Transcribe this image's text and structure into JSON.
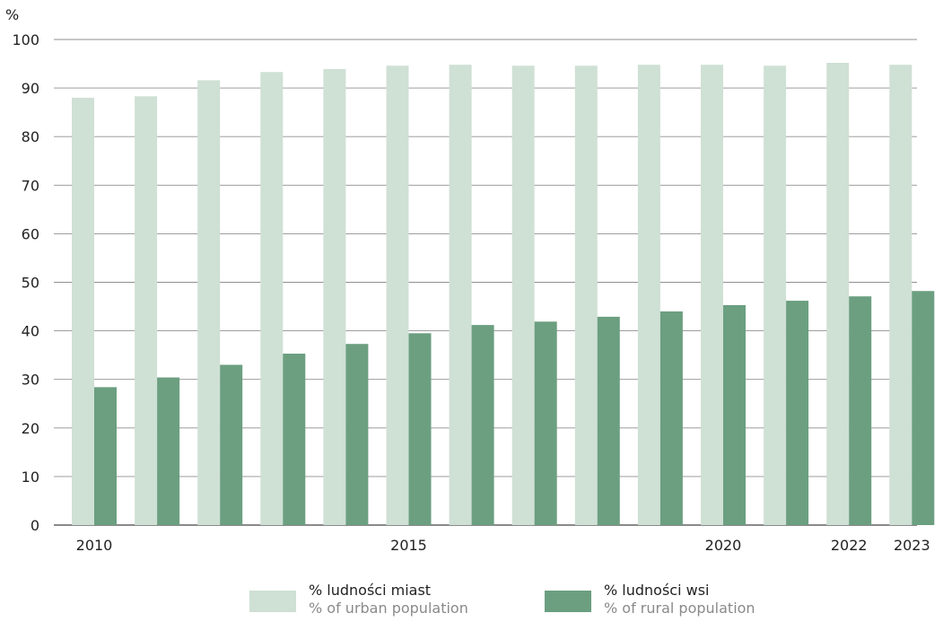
{
  "chart_data": {
    "type": "bar",
    "ylabel": "%",
    "ylim": [
      0,
      100
    ],
    "yticks": [
      "0",
      "10",
      "20",
      "30",
      "40",
      "50",
      "60",
      "70",
      "80",
      "90",
      "100"
    ],
    "grid": true,
    "categories": [
      "2010",
      "2011",
      "2012",
      "2013",
      "2014",
      "2015",
      "2016",
      "2017",
      "2018",
      "2019",
      "2020",
      "2021",
      "2022",
      "2023"
    ],
    "x_tick_labels": [
      "2010",
      "",
      "",
      "",
      "",
      "2015",
      "",
      "",
      "",
      "",
      "2020",
      "",
      "2022",
      "2023"
    ],
    "series": [
      {
        "name": "% ludności miast",
        "name_en": "% of urban population",
        "color": "#cfe0d5",
        "values": [
          88.0,
          88.3,
          91.6,
          93.3,
          93.9,
          94.6,
          94.8,
          94.6,
          94.6,
          94.8,
          94.8,
          94.6,
          95.2,
          94.8
        ]
      },
      {
        "name": "% ludności wsi",
        "name_en": "% of rural population",
        "color": "#6b9f80",
        "values": [
          28.4,
          30.4,
          33.0,
          35.3,
          37.3,
          39.5,
          41.2,
          41.9,
          42.9,
          44.0,
          45.3,
          46.2,
          47.1,
          48.2
        ]
      }
    ],
    "legend_position": "bottom"
  }
}
